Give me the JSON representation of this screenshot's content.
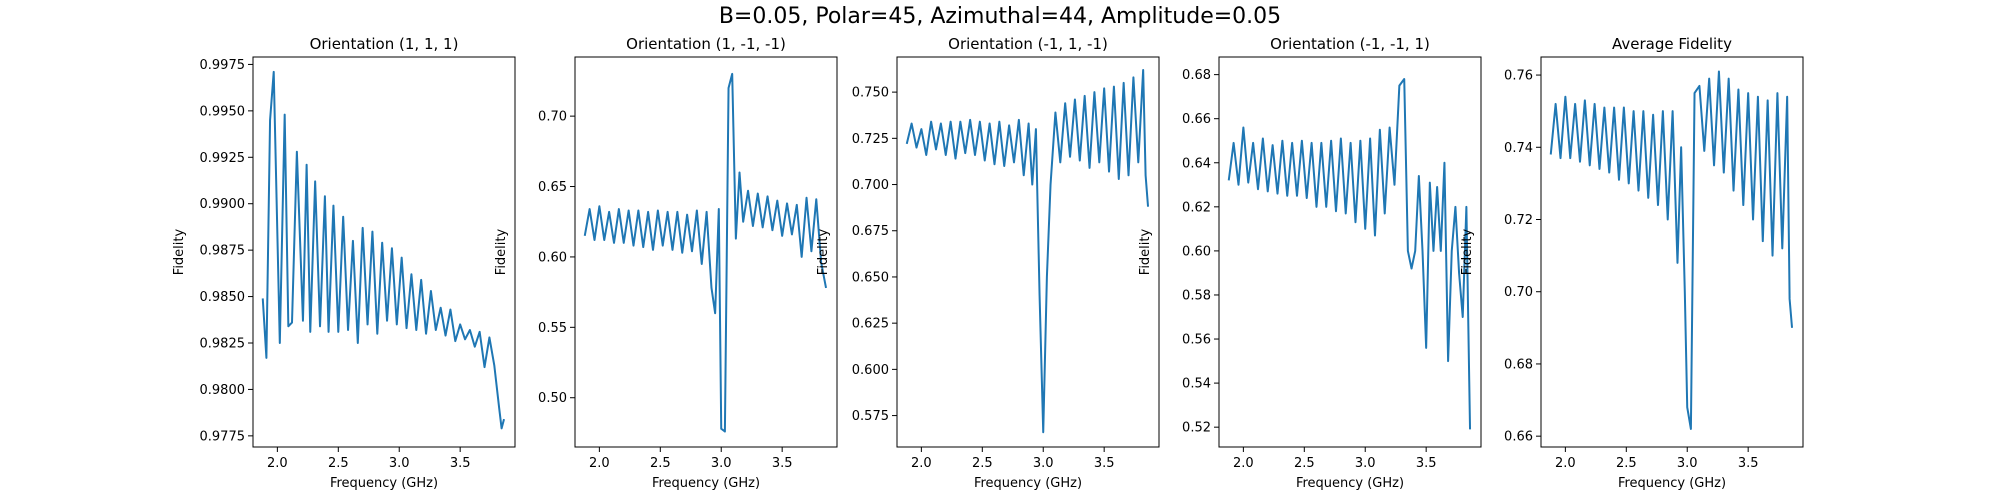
{
  "figure": {
    "suptitle": "B=0.05, Polar=45, Azimuthal=44, Amplitude=0.05"
  },
  "colors": {
    "line": "#1f77b4",
    "axes": "#000000",
    "background": "#ffffff"
  },
  "chart_data": [
    {
      "type": "line",
      "title": "Orientation (1, 1, 1)",
      "xlabel": "Frequency (GHz)",
      "ylabel": "Fidelity",
      "xlim": [
        1.8,
        3.95
      ],
      "ylim": [
        0.9769,
        0.9979
      ],
      "xticks": [
        2.0,
        2.5,
        3.0,
        3.5
      ],
      "xtick_labels": [
        "2.0",
        "2.5",
        "3.0",
        "3.5"
      ],
      "yticks": [
        0.9775,
        0.98,
        0.9825,
        0.985,
        0.9875,
        0.99,
        0.9925,
        0.995,
        0.9975
      ],
      "ytick_labels": [
        "0.9775",
        "0.9800",
        "0.9825",
        "0.9850",
        "0.9875",
        "0.9900",
        "0.9925",
        "0.9950",
        "0.9975"
      ],
      "grid": false,
      "series": [
        {
          "x": [
            1.88,
            1.91,
            1.94,
            1.97,
            2.02,
            2.06,
            2.09,
            2.12,
            2.16,
            2.21,
            2.24,
            2.27,
            2.31,
            2.35,
            2.39,
            2.42,
            2.46,
            2.5,
            2.54,
            2.58,
            2.62,
            2.66,
            2.7,
            2.74,
            2.78,
            2.82,
            2.86,
            2.9,
            2.94,
            2.98,
            3.02,
            3.06,
            3.1,
            3.14,
            3.18,
            3.22,
            3.26,
            3.3,
            3.34,
            3.38,
            3.42,
            3.46,
            3.5,
            3.54,
            3.58,
            3.62,
            3.66,
            3.7,
            3.74,
            3.78,
            3.82,
            3.84,
            3.86
          ],
          "y": [
            0.9849,
            0.9817,
            0.9945,
            0.9971,
            0.9825,
            0.9948,
            0.9834,
            0.9836,
            0.9928,
            0.9837,
            0.9921,
            0.9831,
            0.9912,
            0.9834,
            0.9904,
            0.9831,
            0.9899,
            0.9831,
            0.9893,
            0.9832,
            0.988,
            0.9825,
            0.9887,
            0.9835,
            0.9885,
            0.983,
            0.9879,
            0.9837,
            0.9876,
            0.9835,
            0.9871,
            0.9833,
            0.9862,
            0.9832,
            0.9859,
            0.983,
            0.9853,
            0.9832,
            0.9844,
            0.9829,
            0.9843,
            0.9826,
            0.9835,
            0.9827,
            0.9832,
            0.9823,
            0.9831,
            0.9812,
            0.9828,
            0.9813,
            0.979,
            0.9779,
            0.9784
          ]
        }
      ]
    },
    {
      "type": "line",
      "title": "Orientation (1, -1, -1)",
      "xlabel": "Frequency (GHz)",
      "ylabel": "Fidelity",
      "xlim": [
        1.8,
        3.95
      ],
      "ylim": [
        0.465,
        0.742
      ],
      "xticks": [
        2.0,
        2.5,
        3.0,
        3.5
      ],
      "xtick_labels": [
        "2.0",
        "2.5",
        "3.0",
        "3.5"
      ],
      "yticks": [
        0.5,
        0.55,
        0.6,
        0.65,
        0.7
      ],
      "ytick_labels": [
        "0.50",
        "0.55",
        "0.60",
        "0.65",
        "0.70"
      ],
      "grid": false,
      "series": [
        {
          "x": [
            1.88,
            1.92,
            1.96,
            2.0,
            2.04,
            2.08,
            2.12,
            2.16,
            2.2,
            2.24,
            2.28,
            2.32,
            2.36,
            2.4,
            2.44,
            2.48,
            2.52,
            2.56,
            2.6,
            2.64,
            2.68,
            2.72,
            2.76,
            2.8,
            2.84,
            2.88,
            2.92,
            2.95,
            2.98,
            3.0,
            3.03,
            3.06,
            3.09,
            3.12,
            3.15,
            3.18,
            3.22,
            3.26,
            3.3,
            3.34,
            3.38,
            3.42,
            3.46,
            3.5,
            3.54,
            3.58,
            3.62,
            3.66,
            3.7,
            3.74,
            3.78,
            3.82,
            3.86
          ],
          "y": [
            0.615,
            0.634,
            0.612,
            0.636,
            0.612,
            0.632,
            0.61,
            0.634,
            0.61,
            0.633,
            0.608,
            0.633,
            0.607,
            0.632,
            0.605,
            0.633,
            0.608,
            0.632,
            0.605,
            0.632,
            0.603,
            0.63,
            0.604,
            0.633,
            0.595,
            0.632,
            0.578,
            0.56,
            0.634,
            0.478,
            0.476,
            0.72,
            0.73,
            0.613,
            0.66,
            0.625,
            0.647,
            0.622,
            0.645,
            0.621,
            0.643,
            0.619,
            0.64,
            0.615,
            0.638,
            0.616,
            0.637,
            0.6,
            0.642,
            0.604,
            0.641,
            0.596,
            0.578
          ]
        }
      ]
    },
    {
      "type": "line",
      "title": "Orientation (-1, 1, -1)",
      "xlabel": "Frequency (GHz)",
      "ylabel": "Fidelity",
      "xlim": [
        1.8,
        3.95
      ],
      "ylim": [
        0.558,
        0.769
      ],
      "xticks": [
        2.0,
        2.5,
        3.0,
        3.5
      ],
      "xtick_labels": [
        "2.0",
        "2.5",
        "3.0",
        "3.5"
      ],
      "yticks": [
        0.575,
        0.6,
        0.625,
        0.65,
        0.675,
        0.7,
        0.725,
        0.75
      ],
      "ytick_labels": [
        "0.575",
        "0.600",
        "0.625",
        "0.650",
        "0.675",
        "0.700",
        "0.725",
        "0.750"
      ],
      "grid": false,
      "series": [
        {
          "x": [
            1.88,
            1.92,
            1.96,
            2.0,
            2.04,
            2.08,
            2.12,
            2.16,
            2.2,
            2.24,
            2.28,
            2.32,
            2.36,
            2.4,
            2.44,
            2.48,
            2.52,
            2.56,
            2.6,
            2.64,
            2.68,
            2.72,
            2.76,
            2.8,
            2.84,
            2.88,
            2.91,
            2.94,
            2.97,
            3.0,
            3.03,
            3.06,
            3.1,
            3.14,
            3.18,
            3.22,
            3.26,
            3.3,
            3.34,
            3.38,
            3.42,
            3.46,
            3.5,
            3.54,
            3.58,
            3.62,
            3.66,
            3.7,
            3.74,
            3.78,
            3.82,
            3.84,
            3.86
          ],
          "y": [
            0.722,
            0.733,
            0.72,
            0.73,
            0.716,
            0.734,
            0.719,
            0.733,
            0.716,
            0.734,
            0.714,
            0.734,
            0.717,
            0.735,
            0.716,
            0.734,
            0.713,
            0.733,
            0.711,
            0.734,
            0.71,
            0.732,
            0.712,
            0.735,
            0.705,
            0.733,
            0.7,
            0.73,
            0.64,
            0.566,
            0.65,
            0.7,
            0.739,
            0.712,
            0.744,
            0.715,
            0.746,
            0.713,
            0.748,
            0.709,
            0.75,
            0.712,
            0.752,
            0.707,
            0.753,
            0.703,
            0.755,
            0.705,
            0.758,
            0.712,
            0.762,
            0.705,
            0.688
          ]
        }
      ]
    },
    {
      "type": "line",
      "title": "Orientation (-1, -1, 1)",
      "xlabel": "Frequency (GHz)",
      "ylabel": "Fidelity",
      "xlim": [
        1.8,
        3.95
      ],
      "ylim": [
        0.511,
        0.688
      ],
      "xticks": [
        2.0,
        2.5,
        3.0,
        3.5
      ],
      "xtick_labels": [
        "2.0",
        "2.5",
        "3.0",
        "3.5"
      ],
      "yticks": [
        0.52,
        0.54,
        0.56,
        0.58,
        0.6,
        0.62,
        0.64,
        0.66,
        0.68
      ],
      "ytick_labels": [
        "0.52",
        "0.54",
        "0.56",
        "0.58",
        "0.60",
        "0.62",
        "0.64",
        "0.66",
        "0.68"
      ],
      "grid": false,
      "series": [
        {
          "x": [
            1.88,
            1.92,
            1.96,
            2.0,
            2.04,
            2.08,
            2.12,
            2.16,
            2.2,
            2.24,
            2.28,
            2.32,
            2.36,
            2.4,
            2.44,
            2.48,
            2.52,
            2.56,
            2.6,
            2.64,
            2.68,
            2.72,
            2.76,
            2.8,
            2.84,
            2.88,
            2.92,
            2.96,
            3.0,
            3.04,
            3.08,
            3.12,
            3.16,
            3.2,
            3.24,
            3.28,
            3.32,
            3.35,
            3.38,
            3.41,
            3.44,
            3.47,
            3.5,
            3.53,
            3.56,
            3.59,
            3.62,
            3.65,
            3.68,
            3.71,
            3.74,
            3.77,
            3.8,
            3.83,
            3.86
          ],
          "y": [
            0.632,
            0.649,
            0.63,
            0.656,
            0.631,
            0.649,
            0.628,
            0.651,
            0.627,
            0.648,
            0.626,
            0.65,
            0.625,
            0.649,
            0.625,
            0.65,
            0.624,
            0.649,
            0.62,
            0.649,
            0.62,
            0.65,
            0.618,
            0.651,
            0.617,
            0.649,
            0.613,
            0.65,
            0.61,
            0.651,
            0.607,
            0.655,
            0.617,
            0.656,
            0.63,
            0.675,
            0.678,
            0.6,
            0.592,
            0.6,
            0.634,
            0.6,
            0.556,
            0.631,
            0.6,
            0.629,
            0.6,
            0.64,
            0.55,
            0.6,
            0.62,
            0.59,
            0.57,
            0.62,
            0.519
          ]
        }
      ]
    },
    {
      "type": "line",
      "title": "Average Fidelity",
      "xlabel": "Frequency (GHz)",
      "ylabel": "Fidelity",
      "xlim": [
        1.8,
        3.95
      ],
      "ylim": [
        0.657,
        0.765
      ],
      "xticks": [
        2.0,
        2.5,
        3.0,
        3.5
      ],
      "xtick_labels": [
        "2.0",
        "2.5",
        "3.0",
        "3.5"
      ],
      "yticks": [
        0.66,
        0.68,
        0.7,
        0.72,
        0.74,
        0.76
      ],
      "ytick_labels": [
        "0.66",
        "0.68",
        "0.70",
        "0.72",
        "0.74",
        "0.76"
      ],
      "grid": false,
      "series": [
        {
          "x": [
            1.88,
            1.92,
            1.96,
            2.0,
            2.04,
            2.08,
            2.12,
            2.16,
            2.2,
            2.24,
            2.28,
            2.32,
            2.36,
            2.4,
            2.44,
            2.48,
            2.52,
            2.56,
            2.6,
            2.64,
            2.68,
            2.72,
            2.76,
            2.8,
            2.84,
            2.88,
            2.92,
            2.95,
            2.98,
            3.0,
            3.03,
            3.06,
            3.1,
            3.14,
            3.18,
            3.22,
            3.26,
            3.3,
            3.34,
            3.38,
            3.42,
            3.46,
            3.5,
            3.54,
            3.58,
            3.62,
            3.66,
            3.7,
            3.74,
            3.78,
            3.82,
            3.84,
            3.86
          ],
          "y": [
            0.738,
            0.752,
            0.737,
            0.754,
            0.737,
            0.752,
            0.736,
            0.753,
            0.735,
            0.752,
            0.734,
            0.751,
            0.733,
            0.751,
            0.731,
            0.751,
            0.73,
            0.75,
            0.728,
            0.75,
            0.726,
            0.749,
            0.724,
            0.75,
            0.72,
            0.75,
            0.708,
            0.74,
            0.7,
            0.668,
            0.662,
            0.755,
            0.757,
            0.739,
            0.759,
            0.735,
            0.761,
            0.733,
            0.759,
            0.728,
            0.756,
            0.724,
            0.755,
            0.72,
            0.754,
            0.714,
            0.753,
            0.71,
            0.755,
            0.712,
            0.754,
            0.698,
            0.69
          ]
        }
      ]
    }
  ]
}
